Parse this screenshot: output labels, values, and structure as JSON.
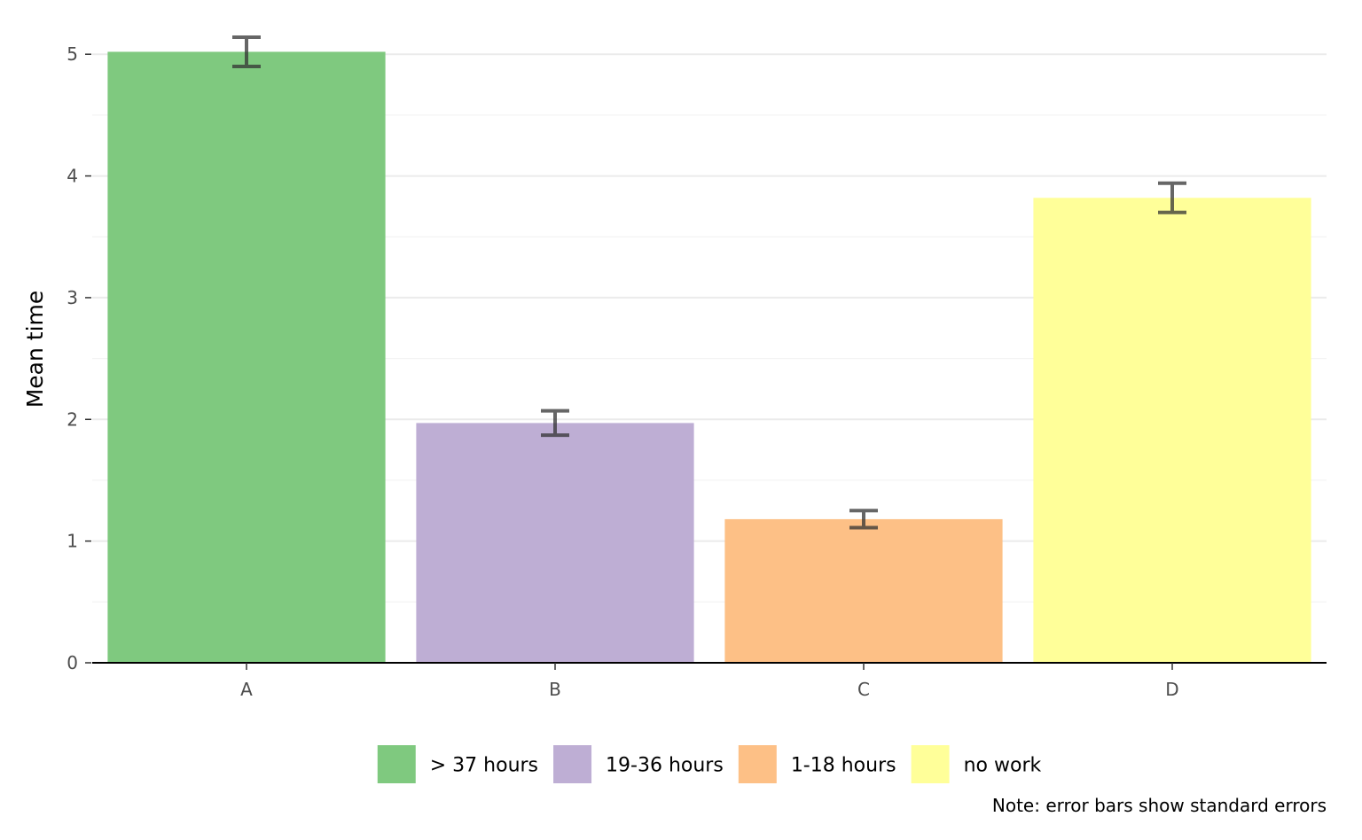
{
  "chart_data": {
    "type": "bar",
    "categories": [
      "A",
      "B",
      "C",
      "D"
    ],
    "values": [
      5.02,
      1.97,
      1.18,
      3.82
    ],
    "errors": [
      0.12,
      0.1,
      0.07,
      0.12
    ],
    "ylabel": "Mean time",
    "xlabel": "",
    "ylim": [
      0,
      5.3
    ],
    "yticks": [
      0,
      1,
      2,
      3,
      4,
      5
    ],
    "grid": true,
    "legend": {
      "position": "bottom",
      "entries": [
        {
          "label": "> 37 hours",
          "color": "#7fc97f"
        },
        {
          "label": "19-36 hours",
          "color": "#beaed4"
        },
        {
          "label": "1-18 hours",
          "color": "#fdc086"
        },
        {
          "label": "no work",
          "color": "#ffff99"
        }
      ]
    },
    "caption": "Note: error bars show standard errors",
    "error_bar_color": "#333333",
    "grid_color": "#ebebeb",
    "axis_color": "#000000"
  }
}
